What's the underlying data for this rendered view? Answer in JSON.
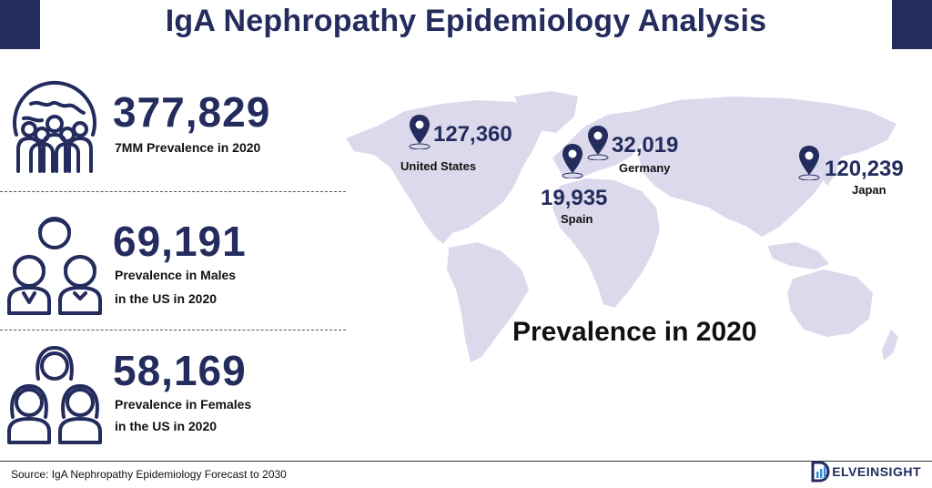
{
  "title": "IgA Nephropathy Epidemiology Analysis",
  "stats": [
    {
      "value": "377,829",
      "caption_lines": [
        "7MM Prevalence in 2020"
      ],
      "icon": "globe-people-icon"
    },
    {
      "value": "69,191",
      "caption_lines": [
        "Prevalence in Males",
        "in the US in 2020"
      ],
      "icon": "male-group-icon"
    },
    {
      "value": "58,169",
      "caption_lines": [
        "Prevalence in Females",
        "in the US in 2020"
      ],
      "icon": "female-group-icon"
    }
  ],
  "map": {
    "caption": "Prevalence in 2020",
    "markers": [
      {
        "country": "United States",
        "value": "127,360"
      },
      {
        "country": "Germany",
        "value": "32,019"
      },
      {
        "country": "Spain",
        "value": "19,935"
      },
      {
        "country": "Japan",
        "value": "120,239"
      }
    ]
  },
  "footer": {
    "source": "Source: IgA Nephropathy Epidemiology Forecast to 2030",
    "logo_text": "ELVEINSIGHT"
  },
  "colors": {
    "brand": "#242c5e",
    "map": "#dcd9ec"
  }
}
